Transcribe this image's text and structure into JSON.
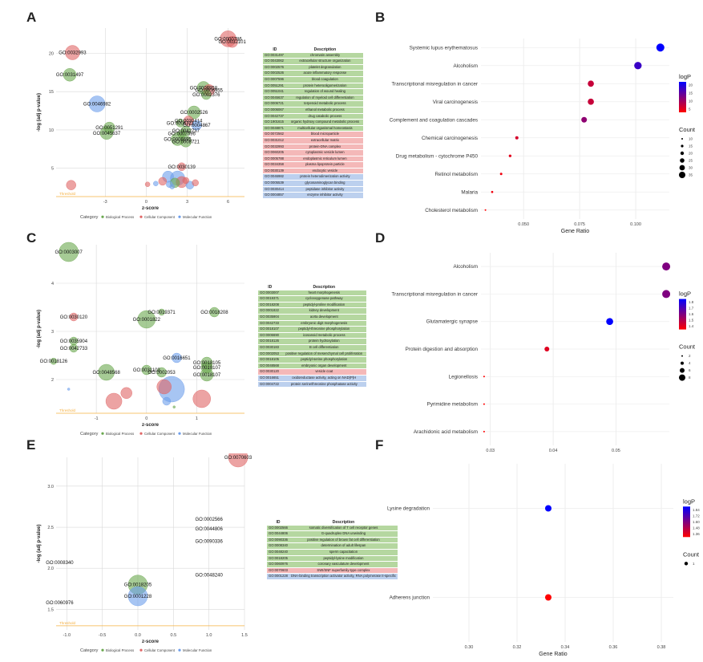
{
  "labels": {
    "A": "A",
    "B": "B",
    "C": "C",
    "D": "D",
    "E": "E",
    "F": "F"
  },
  "colors": {
    "bp": "#6aa84f",
    "cc": "#e06666",
    "mf": "#6d9eeb",
    "threshold": "#f5b041",
    "logp_low": "#ff0000",
    "logp_high": "#0000ff"
  },
  "legend": {
    "category_title": "Category",
    "category_items": [
      "Biological Process",
      "Cellular Component",
      "Molecular Function"
    ],
    "logp_title": "logP",
    "count_title": "Count",
    "threshold_label": "Threshold"
  },
  "chart_data": [
    {
      "panel": "A",
      "type": "scatter",
      "xlabel": "z-score",
      "ylabel": "-log (adj p-value)",
      "xlim": [
        -6.6,
        7.2
      ],
      "ylim": [
        1.3,
        23.3
      ],
      "xticks": [
        -3,
        0,
        3,
        6
      ],
      "yticks": [
        5,
        10,
        15,
        20
      ],
      "threshold": 1.3,
      "points": [
        {
          "x": -5.4,
          "y": 20.1,
          "r": 9,
          "cat": "cc",
          "label": "GO:0032993"
        },
        {
          "x": -5.6,
          "y": 17.2,
          "r": 8,
          "cat": "bp",
          "label": "GO:0031497"
        },
        {
          "x": -3.6,
          "y": 13.4,
          "r": 10,
          "cat": "mf",
          "label": "GO:0046982"
        },
        {
          "x": -2.7,
          "y": 10.3,
          "r": 7,
          "cat": "bp",
          "label": "GO:0051291"
        },
        {
          "x": -2.9,
          "y": 9.6,
          "r": 8,
          "cat": "bp",
          "label": "GO:0045637"
        },
        {
          "x": 6.0,
          "y": 21.9,
          "r": 10,
          "cat": "cc",
          "label": "GO:0000786"
        },
        {
          "x": 6.3,
          "y": 21.5,
          "r": 7,
          "cat": "cc",
          "label": "GO:0032101"
        },
        {
          "x": 4.2,
          "y": 15.5,
          "r": 8,
          "cat": "bp",
          "label": "GO:0006958"
        },
        {
          "x": 4.6,
          "y": 15.2,
          "r": 7,
          "cat": "cc",
          "label": "GO:0006955"
        },
        {
          "x": 4.4,
          "y": 14.6,
          "r": 6,
          "cat": "bp",
          "label": "GO:0002376"
        },
        {
          "x": 3.5,
          "y": 12.3,
          "r": 8,
          "cat": "bp",
          "label": "GO:0002526"
        },
        {
          "x": 3.1,
          "y": 11.2,
          "r": 6,
          "cat": "cc",
          "label": "GO:0030414"
        },
        {
          "x": 3.7,
          "y": 10.6,
          "r": 6,
          "cat": "mf",
          "label": "GO:0004867"
        },
        {
          "x": 2.5,
          "y": 10.9,
          "r": 5,
          "cat": "bp",
          "label": "GO:0006721"
        },
        {
          "x": 2.9,
          "y": 9.9,
          "r": 6,
          "cat": "bp",
          "label": "GO:0042737"
        },
        {
          "x": 2.6,
          "y": 9.5,
          "r": 5,
          "cat": "bp",
          "label": "GO:0007596"
        },
        {
          "x": 2.3,
          "y": 8.8,
          "r": 8,
          "cat": "bp",
          "label": "GO:0006695"
        },
        {
          "x": 2.9,
          "y": 8.5,
          "r": 7,
          "cat": "bp",
          "label": "GO:0008721"
        },
        {
          "x": 2.6,
          "y": 5.2,
          "r": 5,
          "cat": "cc",
          "label": "GO:0030139"
        },
        {
          "x": 1.6,
          "y": 3.9,
          "r": 7,
          "cat": "mf",
          "label": ""
        },
        {
          "x": 2.3,
          "y": 3.7,
          "r": 9,
          "cat": "mf",
          "label": ""
        },
        {
          "x": 2.6,
          "y": 3.2,
          "r": 7,
          "cat": "cc",
          "label": ""
        },
        {
          "x": 1.2,
          "y": 3.3,
          "r": 5,
          "cat": "cc",
          "label": ""
        },
        {
          "x": 2.1,
          "y": 3.1,
          "r": 6,
          "cat": "bp",
          "label": ""
        },
        {
          "x": 1.7,
          "y": 2.9,
          "r": 4,
          "cat": "mf",
          "label": ""
        },
        {
          "x": 0.7,
          "y": 3.0,
          "r": 3,
          "cat": "mf",
          "label": ""
        },
        {
          "x": 3.2,
          "y": 2.8,
          "r": 5,
          "cat": "mf",
          "label": ""
        },
        {
          "x": 2.9,
          "y": 3.4,
          "r": 4,
          "cat": "cc",
          "label": ""
        },
        {
          "x": 0.1,
          "y": 2.9,
          "r": 3,
          "cat": "cc",
          "label": ""
        },
        {
          "x": -5.5,
          "y": 2.8,
          "r": 6,
          "cat": "cc",
          "label": ""
        },
        {
          "x": 3.6,
          "y": 3.1,
          "r": 4,
          "cat": "cc",
          "label": ""
        },
        {
          "x": 1.9,
          "y": 2.6,
          "r": 3,
          "cat": "mf",
          "label": ""
        }
      ]
    },
    {
      "panel": "B",
      "type": "dot",
      "xlabel": "Gene Ratio",
      "xlim": [
        0.031,
        0.115
      ],
      "xticks": [
        0.05,
        0.075,
        0.1
      ],
      "xticklabels": [
        "0.050",
        "0.075",
        "0.100"
      ],
      "legend_logp_ticks": [
        "20",
        "15",
        "10",
        "5"
      ],
      "legend_count_ticks": [
        "10",
        "15",
        "20",
        "25",
        "30",
        "35"
      ],
      "categories": [
        "Systemic lupus erythematosus",
        "Alcoholism",
        "Transcriptional misregulation in cancer",
        "Viral carcinogenesis",
        "Complement and coagulation cascades",
        "Chemical carcinogenesis",
        "Drug metabolism - cytochrome P450",
        "Retinol metabolism",
        "Malaria",
        "Cholesterol metabolism"
      ],
      "x": [
        0.111,
        0.101,
        0.08,
        0.08,
        0.077,
        0.047,
        0.044,
        0.04,
        0.036,
        0.033
      ],
      "size": [
        35,
        33,
        28,
        28,
        26,
        17,
        15,
        14,
        13,
        11
      ],
      "logp": [
        22,
        18,
        8,
        8,
        12,
        7,
        6,
        5,
        5,
        4
      ]
    },
    {
      "panel": "C",
      "type": "scatter",
      "xlabel": "z-score",
      "ylabel": "-log (adj p-value)",
      "xlim": [
        -1.8,
        1.95
      ],
      "ylim": [
        1.3,
        4.8
      ],
      "xticks": [
        -1,
        0,
        1
      ],
      "yticks": [
        2,
        3,
        4
      ],
      "threshold": 1.3,
      "points": [
        {
          "x": -1.55,
          "y": 4.65,
          "r": 12,
          "cat": "bp",
          "label": "GO:0003007"
        },
        {
          "x": -1.45,
          "y": 3.3,
          "r": 5,
          "cat": "cc",
          "label": "GO:0030120"
        },
        {
          "x": -1.45,
          "y": 2.8,
          "r": 5,
          "cat": "bp",
          "label": "GO:0035904"
        },
        {
          "x": -1.45,
          "y": 2.65,
          "r": 5,
          "cat": "bp",
          "label": "GO:0042733"
        },
        {
          "x": -1.85,
          "y": 2.38,
          "r": 4,
          "cat": "bp",
          "label": "GO:0018126"
        },
        {
          "x": -0.8,
          "y": 2.15,
          "r": 10,
          "cat": "bp",
          "label": "GO:0048568"
        },
        {
          "x": 0.0,
          "y": 3.25,
          "r": 11,
          "cat": "bp",
          "label": "GO:0001822"
        },
        {
          "x": 0.3,
          "y": 3.4,
          "r": 4,
          "cat": "bp",
          "label": "GO:0019371"
        },
        {
          "x": 1.35,
          "y": 3.4,
          "r": 6,
          "cat": "bp",
          "label": "GO:0018208"
        },
        {
          "x": 0.6,
          "y": 2.45,
          "r": 6,
          "cat": "mf",
          "label": "GO:0016651"
        },
        {
          "x": 0.0,
          "y": 2.2,
          "r": 6,
          "cat": "bp",
          "label": "GO:0031103"
        },
        {
          "x": 0.3,
          "y": 2.15,
          "r": 6,
          "cat": "bp",
          "label": "GO:0002053"
        },
        {
          "x": 1.2,
          "y": 2.35,
          "r": 7,
          "cat": "bp",
          "label": "GO:0018105"
        },
        {
          "x": 1.2,
          "y": 2.25,
          "r": 7,
          "cat": "bp",
          "label": "GO:0018107"
        },
        {
          "x": 1.2,
          "y": 2.1,
          "r": 8,
          "cat": "bp",
          "label": "GO:0018107"
        },
        {
          "x": 0.5,
          "y": 1.8,
          "r": 16,
          "cat": "mf",
          "label": ""
        },
        {
          "x": 0.35,
          "y": 1.85,
          "r": 9,
          "cat": "cc",
          "label": ""
        },
        {
          "x": 1.1,
          "y": 1.6,
          "r": 11,
          "cat": "cc",
          "label": ""
        },
        {
          "x": -0.65,
          "y": 1.55,
          "r": 10,
          "cat": "cc",
          "label": ""
        },
        {
          "x": -0.4,
          "y": 1.72,
          "r": 7,
          "cat": "cc",
          "label": ""
        },
        {
          "x": 0.4,
          "y": 1.55,
          "r": 5,
          "cat": "mf",
          "label": ""
        },
        {
          "x": -1.55,
          "y": 1.8,
          "r": 1.5,
          "cat": "mf",
          "label": ""
        },
        {
          "x": 0.55,
          "y": 1.43,
          "r": 1.5,
          "cat": "bp",
          "label": ""
        }
      ]
    },
    {
      "panel": "D",
      "type": "dot",
      "xlabel": "Gene Ratio",
      "xlim": [
        0.0285,
        0.0585
      ],
      "xticks": [
        0.03,
        0.04,
        0.05
      ],
      "xticklabels": [
        "0.03",
        "0.04",
        "0.05"
      ],
      "legend_logp_ticks": [
        "1.8",
        "1.7",
        "1.6",
        "1.5",
        "1.4"
      ],
      "legend_count_ticks": [
        "2",
        "4",
        "6",
        "8"
      ],
      "categories": [
        "Alcoholism",
        "Transcriptional misregulation in cancer",
        "Glutamatergic synapse",
        "Protein digestion and absorption",
        "Legionellosis",
        "Pyrimidine metabolism",
        "Arachidonic acid metabolism"
      ],
      "x": [
        0.058,
        0.058,
        0.049,
        0.039,
        0.029,
        0.029,
        0.029
      ],
      "size": [
        8,
        8,
        7,
        5,
        2,
        2,
        2
      ],
      "logp": [
        1.6,
        1.6,
        1.8,
        1.45,
        1.4,
        1.4,
        1.4
      ]
    },
    {
      "panel": "E",
      "type": "scatter",
      "xlabel": "z-score",
      "ylabel": "-log (adj p-value)",
      "xlim": [
        -1.15,
        1.5
      ],
      "ylim": [
        1.25,
        3.35
      ],
      "xticks": [
        -1.0,
        -0.5,
        0.0,
        0.5,
        1.0,
        1.5
      ],
      "xticklabels": [
        "-1.0",
        "-0.5",
        "0.0",
        "0.5",
        "1.0",
        "1.5"
      ],
      "yticks": [
        1.5,
        2.0,
        2.5,
        3.0
      ],
      "yticklabels": [
        "1.5",
        "2.0",
        "2.5",
        "3.0"
      ],
      "threshold": 1.3,
      "points": [
        {
          "x": 1.41,
          "y": 3.35,
          "r": 12,
          "cat": "cc",
          "label": "GO:0070603"
        },
        {
          "x": 1.0,
          "y": 2.6,
          "r": 0,
          "cat": "bp",
          "label": "GO:0002566"
        },
        {
          "x": 1.0,
          "y": 2.48,
          "r": 0,
          "cat": "bp",
          "label": "GO:0044806"
        },
        {
          "x": 1.0,
          "y": 2.33,
          "r": 0,
          "cat": "bp",
          "label": "GO:0090336"
        },
        {
          "x": 1.0,
          "y": 1.92,
          "r": 0,
          "cat": "bp",
          "label": "GO:0048240"
        },
        {
          "x": -1.1,
          "y": 2.07,
          "r": 0,
          "cat": "bp",
          "label": "GO:0008340"
        },
        {
          "x": -1.1,
          "y": 1.58,
          "r": 0,
          "cat": "bp",
          "label": "GO:0060976"
        },
        {
          "x": 0.0,
          "y": 1.8,
          "r": 12,
          "cat": "bp",
          "label": "GO:0018205"
        },
        {
          "x": 0.0,
          "y": 1.66,
          "r": 12,
          "cat": "mf",
          "label": "GO:0001228"
        }
      ]
    },
    {
      "panel": "F",
      "type": "dot",
      "xlabel": "Gene Ratio",
      "xlim": [
        0.285,
        0.385
      ],
      "xticks": [
        0.3,
        0.32,
        0.34,
        0.36,
        0.38
      ],
      "xticklabels": [
        "0.30",
        "0.32",
        "0.34",
        "0.36",
        "0.38"
      ],
      "legend_logp_ticks": [
        "1.84",
        "1.72",
        "1.60",
        "1.48",
        "1.36"
      ],
      "legend_count_ticks": [
        "1"
      ],
      "categories": [
        "Lysine degradation",
        "Adherens junction"
      ],
      "x": [
        0.333,
        0.333
      ],
      "size": [
        1,
        1
      ],
      "logp": [
        1.84,
        1.36
      ]
    }
  ],
  "tables": {
    "header": {
      "id": "ID",
      "desc": "Description"
    },
    "A": [
      {
        "cat": "bp",
        "id": "GO:0031497",
        "desc": "chromatin assembly"
      },
      {
        "cat": "bp",
        "id": "GO:0043062",
        "desc": "extracellular structure organization"
      },
      {
        "cat": "bp",
        "id": "GO:0002576",
        "desc": "platelet degranulation"
      },
      {
        "cat": "bp",
        "id": "GO:0002526",
        "desc": "acute inflammatory response"
      },
      {
        "cat": "bp",
        "id": "GO:0007596",
        "desc": "blood coagulation"
      },
      {
        "cat": "bp",
        "id": "GO:0051291",
        "desc": "protein heterooligomerization"
      },
      {
        "cat": "bp",
        "id": "GO:0051041",
        "desc": "regulation of wound healing"
      },
      {
        "cat": "bp",
        "id": "GO:0045637",
        "desc": "regulation of myeloid cell differentiation"
      },
      {
        "cat": "bp",
        "id": "GO:0006721",
        "desc": "terpenoid metabolic process"
      },
      {
        "cat": "bp",
        "id": "GO:0006067",
        "desc": "ethanol metabolic process"
      },
      {
        "cat": "bp",
        "id": "GO:0042737",
        "desc": "drug catabolic process"
      },
      {
        "cat": "bp",
        "id": "GO:1901615",
        "desc": "organic hydroxy compound metabolic process"
      },
      {
        "cat": "bp",
        "id": "GO:0048871",
        "desc": "multicellular organismal homeostasis"
      },
      {
        "cat": "cc",
        "id": "GO:0072562",
        "desc": "blood microparticle"
      },
      {
        "cat": "cc",
        "id": "GO:0031012",
        "desc": "extracellular matrix"
      },
      {
        "cat": "cc",
        "id": "GO:0032993",
        "desc": "protein-DNA complex"
      },
      {
        "cat": "cc",
        "id": "GO:0060205",
        "desc": "cytoplasmic vesicle lumen"
      },
      {
        "cat": "cc",
        "id": "GO:0005788",
        "desc": "endoplasmic reticulum lumen"
      },
      {
        "cat": "cc",
        "id": "GO:0034358",
        "desc": "plasma lipoprotein particle"
      },
      {
        "cat": "cc",
        "id": "GO:0030139",
        "desc": "endocytic vesicle"
      },
      {
        "cat": "mf",
        "id": "GO:0046982",
        "desc": "protein heterodimerization activity"
      },
      {
        "cat": "mf",
        "id": "GO:0005539",
        "desc": "glycosaminoglycan binding"
      },
      {
        "cat": "mf",
        "id": "GO:0030414",
        "desc": "peptidase inhibitor activity"
      },
      {
        "cat": "mf",
        "id": "GO:0004857",
        "desc": "enzyme inhibitor activity"
      }
    ],
    "C": [
      {
        "cat": "bp",
        "id": "GO:0003007",
        "desc": "heart morphogenesis"
      },
      {
        "cat": "bp",
        "id": "GO:0019371",
        "desc": "cyclooxygenase pathway"
      },
      {
        "cat": "bp",
        "id": "GO:0018208",
        "desc": "peptidyl-proline modification"
      },
      {
        "cat": "bp",
        "id": "GO:0001822",
        "desc": "kidney development"
      },
      {
        "cat": "bp",
        "id": "GO:0035904",
        "desc": "aorta development"
      },
      {
        "cat": "bp",
        "id": "GO:0042733",
        "desc": "embryonic digit morphogenesis"
      },
      {
        "cat": "bp",
        "id": "GO:0018107",
        "desc": "peptidyl-threonine phosphorylation"
      },
      {
        "cat": "bp",
        "id": "GO:0006690",
        "desc": "icosanoid metabolic process"
      },
      {
        "cat": "bp",
        "id": "GO:0018126",
        "desc": "protein hydroxylation"
      },
      {
        "cat": "bp",
        "id": "GO:0030183",
        "desc": "B cell differentiation"
      },
      {
        "cat": "bp",
        "id": "GO:0002053",
        "desc": "positive regulation of mesenchymal cell proliferation"
      },
      {
        "cat": "bp",
        "id": "GO:0018105",
        "desc": "peptidyl-serine phosphorylation"
      },
      {
        "cat": "bp",
        "id": "GO:0048568",
        "desc": "embryonic organ development"
      },
      {
        "cat": "cc",
        "id": "GO:0030120",
        "desc": "vesicle coat"
      },
      {
        "cat": "mf",
        "id": "GO:0016651",
        "desc": "oxidoreductase activity, acting on NAD(P)H"
      },
      {
        "cat": "mf",
        "id": "GO:0004722",
        "desc": "protein serine/threonine phosphatase activity"
      }
    ],
    "E": [
      {
        "cat": "bp",
        "id": "GO:0002566",
        "desc": "somatic diversification of T cell receptor genes"
      },
      {
        "cat": "bp",
        "id": "GO:0044806",
        "desc": "G-quadruplex DNA unwinding"
      },
      {
        "cat": "bp",
        "id": "GO:0090336",
        "desc": "positive regulation of brown fat cell differentiation"
      },
      {
        "cat": "bp",
        "id": "GO:0008340",
        "desc": "determination of adult lifespan"
      },
      {
        "cat": "bp",
        "id": "GO:0048240",
        "desc": "sperm capacitation"
      },
      {
        "cat": "bp",
        "id": "GO:0018205",
        "desc": "peptidyl-lysine modification"
      },
      {
        "cat": "bp",
        "id": "GO:0060976",
        "desc": "coronary vasculature development"
      },
      {
        "cat": "cc",
        "id": "GO:0070603",
        "desc": "SWI/SNF superfamily-type complex"
      },
      {
        "cat": "mf",
        "id": "GO:0001228",
        "desc": "DNA-binding transcription activator activity, RNA polymerase II-specific"
      }
    ]
  }
}
